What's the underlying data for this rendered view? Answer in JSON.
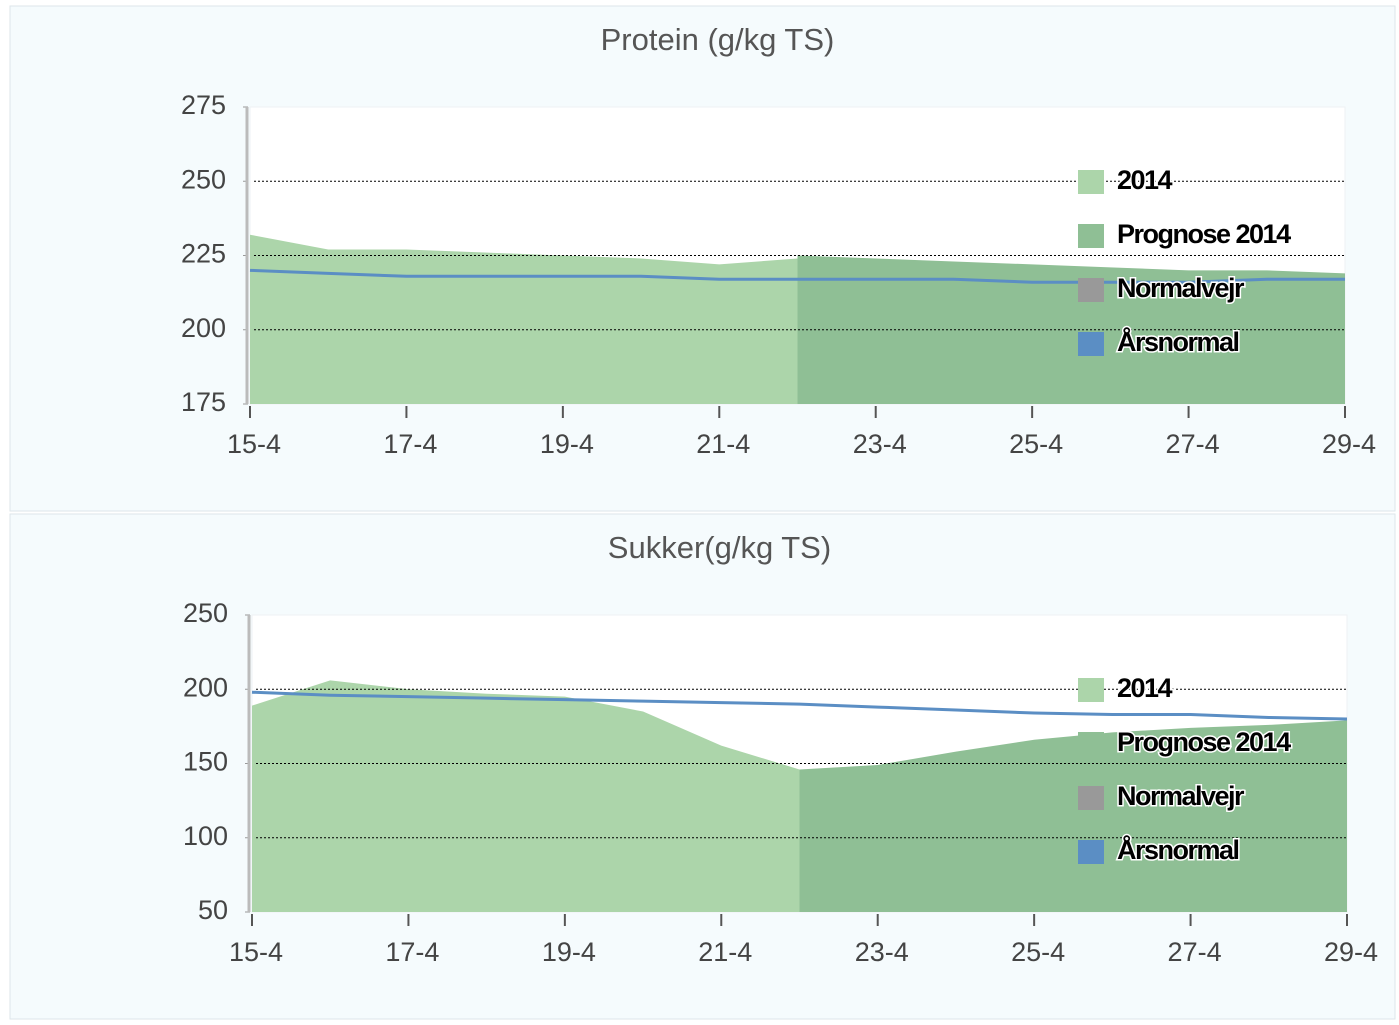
{
  "chart_data": [
    {
      "type": "area",
      "title": "Protein (g/kg TS)",
      "categories": [
        "15-4",
        null,
        "17-4",
        null,
        "19-4",
        null,
        "21-4",
        null,
        "23-4",
        null,
        "25-4",
        null,
        "27-4",
        null,
        "29-4"
      ],
      "ylim": [
        175,
        275
      ],
      "yticks": [
        175,
        200,
        225,
        250,
        275
      ],
      "grid": true,
      "legend": "upper right",
      "series": [
        {
          "name": "2014",
          "color": "#acd5aa",
          "values": [
            232,
            227,
            227,
            226,
            225,
            224,
            222,
            224,
            null,
            null,
            null,
            null,
            null,
            null,
            null
          ]
        },
        {
          "name": "Prognose 2014",
          "color": "#8fbf95",
          "values": [
            null,
            null,
            null,
            null,
            null,
            null,
            null,
            225,
            224,
            223,
            222,
            221,
            220,
            220,
            219
          ]
        },
        {
          "name": "Normalvejr",
          "color": "#999999",
          "values": [
            null,
            null,
            null,
            null,
            null,
            null,
            null,
            null,
            null,
            null,
            null,
            null,
            null,
            null,
            null
          ]
        },
        {
          "name": "Årsnormal",
          "color": "#5b8ec4",
          "type": "line",
          "values": [
            220,
            219,
            218,
            218,
            218,
            218,
            217,
            217,
            217,
            217,
            216,
            216,
            216,
            217,
            217
          ]
        }
      ]
    },
    {
      "type": "area",
      "title": "Sukker(g/kg TS)",
      "categories": [
        "15-4",
        null,
        "17-4",
        null,
        "19-4",
        null,
        "21-4",
        null,
        "23-4",
        null,
        "25-4",
        null,
        "27-4",
        null,
        "29-4"
      ],
      "ylim": [
        50,
        250
      ],
      "yticks": [
        50,
        100,
        150,
        200,
        250
      ],
      "grid": true,
      "legend": "upper right",
      "series": [
        {
          "name": "2014",
          "color": "#acd5aa",
          "values": [
            189,
            206,
            200,
            197,
            195,
            185,
            162,
            146,
            null,
            null,
            null,
            null,
            null,
            null,
            null
          ]
        },
        {
          "name": "Prognose 2014",
          "color": "#8fbf95",
          "values": [
            null,
            null,
            null,
            null,
            null,
            null,
            null,
            146,
            149,
            158,
            166,
            171,
            174,
            176,
            179
          ]
        },
        {
          "name": "Normalvejr",
          "color": "#999999",
          "values": [
            null,
            null,
            null,
            null,
            null,
            null,
            null,
            null,
            null,
            null,
            null,
            null,
            null,
            null,
            null
          ]
        },
        {
          "name": "Årsnormal",
          "color": "#5b8ec4",
          "type": "line",
          "values": [
            198,
            196,
            195,
            194,
            193,
            192,
            191,
            190,
            188,
            186,
            184,
            183,
            183,
            181,
            180
          ]
        }
      ]
    }
  ]
}
